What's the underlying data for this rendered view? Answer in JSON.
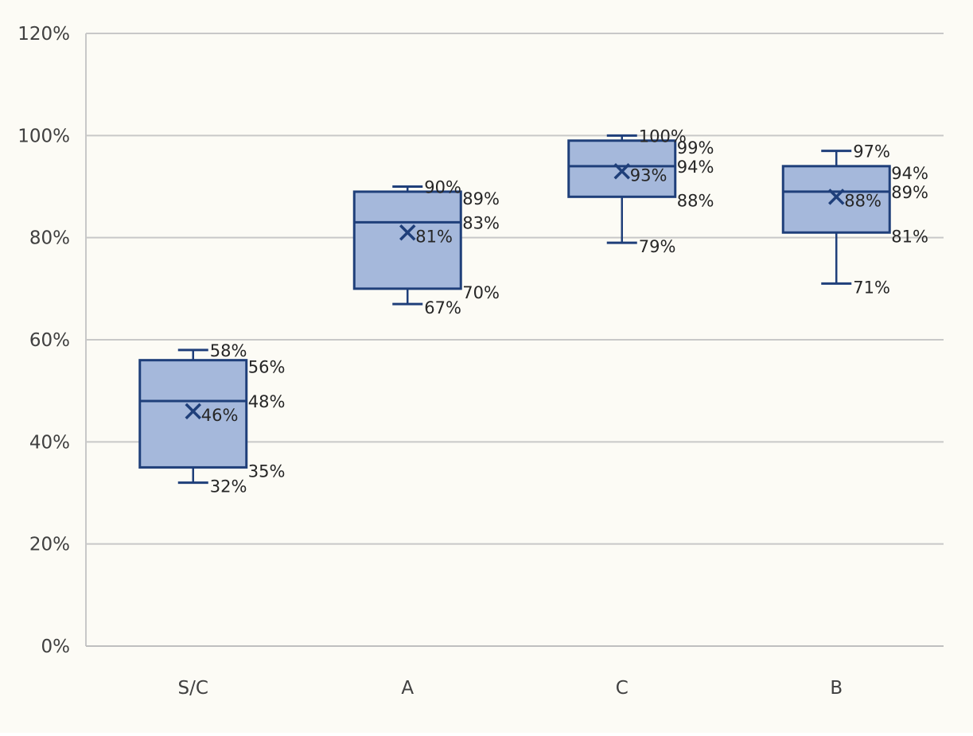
{
  "chart_data": {
    "type": "box",
    "title": "",
    "xlabel": "",
    "ylabel": "",
    "ylim": [
      0,
      1.2
    ],
    "y_ticks": [
      0,
      0.2,
      0.4,
      0.6,
      0.8,
      1.0,
      1.2
    ],
    "y_tick_labels": [
      "0%",
      "20%",
      "40%",
      "60%",
      "80%",
      "100%",
      "120%"
    ],
    "grid": true,
    "legend": "none",
    "colors": {
      "box_fill": "#a5b8db",
      "box_stroke": "#1f3f7a",
      "mean_marker": "#1f3f7a",
      "grid": "#c8c8c8",
      "background": "#fcfbf5"
    },
    "categories": [
      "S/C",
      "A",
      "C",
      "B"
    ],
    "boxes": [
      {
        "category": "S/C",
        "min": 0.32,
        "q1": 0.35,
        "median": 0.48,
        "q3": 0.56,
        "max": 0.58,
        "mean": 0.46,
        "labels": {
          "max": "58%",
          "q3": "56%",
          "median": "48%",
          "mean": "46%",
          "q1": "35%",
          "min": "32%"
        }
      },
      {
        "category": "A",
        "min": 0.67,
        "q1": 0.7,
        "median": 0.83,
        "q3": 0.89,
        "max": 0.9,
        "mean": 0.81,
        "labels": {
          "max": "90%",
          "q3": "89%",
          "median": "83%",
          "mean": "81%",
          "q1": "70%",
          "min": "67%"
        }
      },
      {
        "category": "C",
        "min": 0.79,
        "q1": 0.88,
        "median": 0.94,
        "q3": 0.99,
        "max": 1.0,
        "mean": 0.93,
        "labels": {
          "max": "100%",
          "q3": "99%",
          "median": "94%",
          "mean": "93%",
          "q1": "88%",
          "min": "79%"
        }
      },
      {
        "category": "B",
        "min": 0.71,
        "q1": 0.81,
        "median": 0.89,
        "q3": 0.94,
        "max": 0.97,
        "mean": 0.88,
        "labels": {
          "max": "97%",
          "q3": "94%",
          "median": "89%",
          "mean": "88%",
          "q1": "81%",
          "min": "71%"
        }
      }
    ]
  }
}
